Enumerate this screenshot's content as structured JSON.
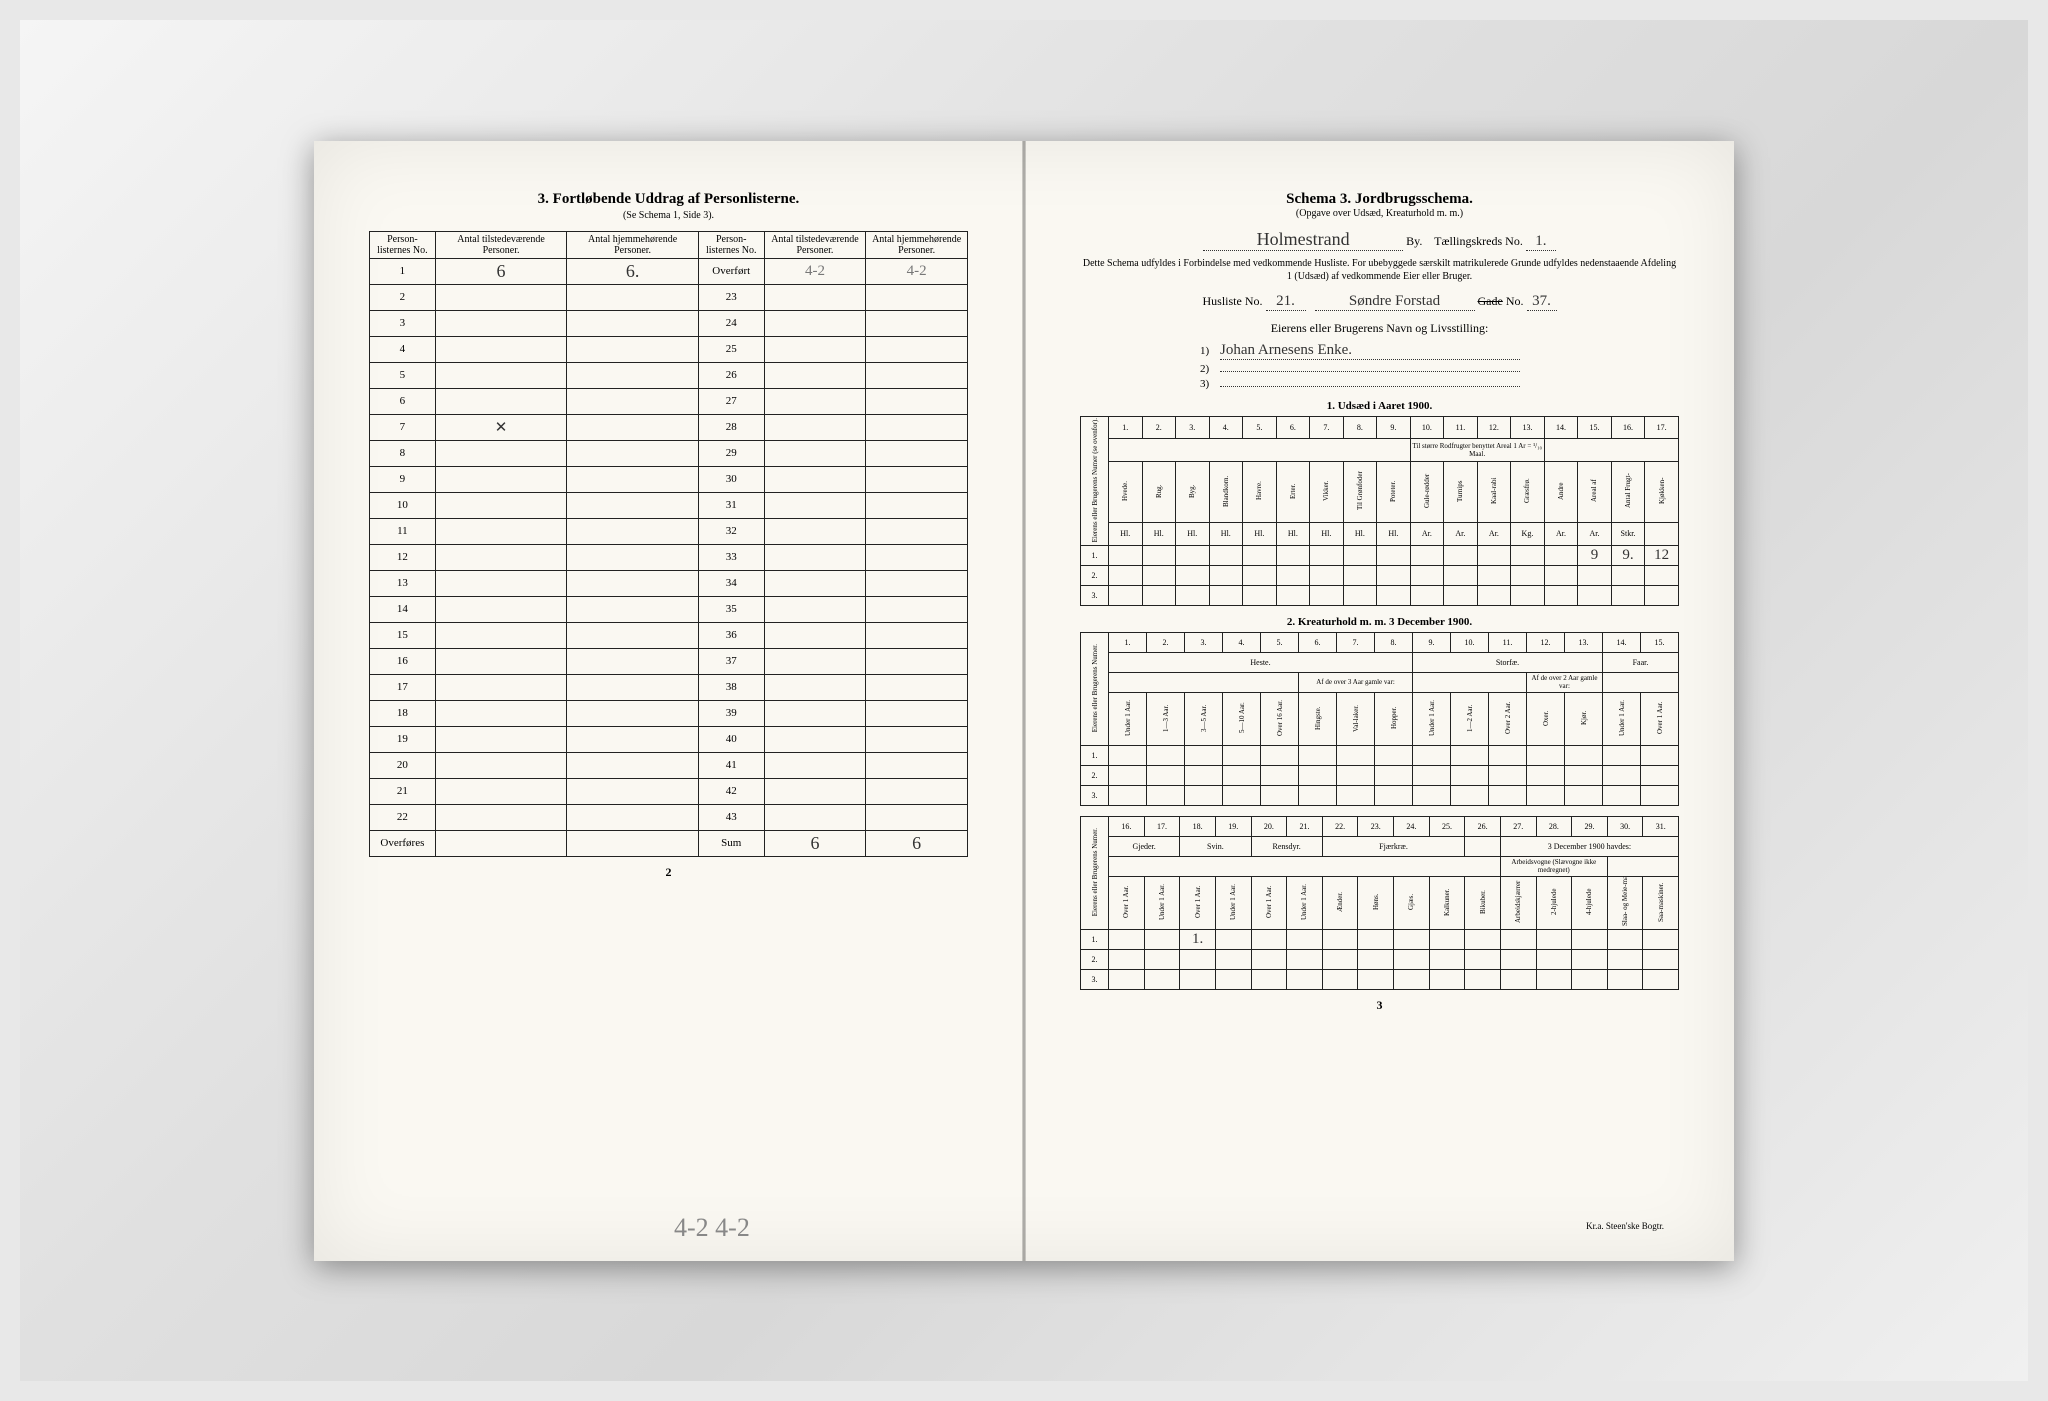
{
  "left": {
    "title": "3.  Fortløbende Uddrag af Personlisterne.",
    "subtitle": "(Se Schema 1, Side 3).",
    "headers": {
      "col1": "Person-\nlisternes\nNo.",
      "col2": "Antal\ntilstedeværende\nPersoner.",
      "col3": "Antal\nhjemmehørende\nPersoner.",
      "col4": "Person-\nlisternes\nNo.",
      "col5": "Antal\ntilstedeværende\nPersoner.",
      "col6": "Antal\nhjemmehørende\nPersoner."
    },
    "overfort_label": "Overført",
    "overfort_hw_c5": "4-2",
    "overfort_hw_c6": "4-2",
    "row1_c2": "6",
    "row1_c3": "6.",
    "row7_mark": "✕",
    "overfores_label": "Overføres",
    "sum_label": "Sum",
    "sum_c5": "6",
    "sum_c6": "6",
    "page_num": "2",
    "pencil_note": "4-2 4-2"
  },
  "right": {
    "title": "Schema 3.  Jordbrugsschema.",
    "subtitle": "(Opgave over Udsæd, Kreaturhold m. m.)",
    "city_hw": "Holmestrand",
    "by_label": "By.",
    "kreds_label": "Tællingskreds No.",
    "kreds_hw": "1.",
    "desc": "Dette Schema udfyldes i Forbindelse med vedkommende Husliste. For ubebyggede særskilt matrikulerede Grunde udfyldes nedenstaaende Afdeling 1 (Udsæd) af vedkommende Eier eller Bruger.",
    "husliste_label": "Husliste No.",
    "husliste_hw": "21.",
    "gade_hw": "Søndre Forstad",
    "gade_label": "Gade",
    "gade_no_label": "No.",
    "gade_no_hw": "37.",
    "owner_heading": "Eierens eller Brugerens Navn og Livsstilling:",
    "owner_1": "Johan Arnesens Enke.",
    "owner_2": "",
    "owner_3": "",
    "sec1_title": "1.  Udsæd i Aaret 1900.",
    "sec1": {
      "cols_num": [
        "1.",
        "2.",
        "3.",
        "4.",
        "5.",
        "6.",
        "7.",
        "8.",
        "9.",
        "10.",
        "11.",
        "12.",
        "13.",
        "14.",
        "15.",
        "16.",
        "17."
      ],
      "side": "Eierens eller\nBrugerens Numer\n(se ovenfor).",
      "labels": [
        "Hvede.",
        "Rug.",
        "Byg.",
        "Blandkorn.",
        "Havre.",
        "Erter.",
        "Vikker.",
        "Til Grønfoder",
        "Poteter.",
        "Gule-rødder",
        "Turnips",
        "Kaal-rabi",
        "Græsfrø.",
        "Andre",
        "Areal af",
        "Antal Frugt-",
        "Kjøkken-"
      ],
      "units": [
        "Hl.",
        "Hl.",
        "Hl.",
        "Hl.",
        "Hl.",
        "Hl.",
        "Hl.",
        "Hl.",
        "Hl.",
        "Ar.",
        "Ar.",
        "Ar.",
        "Kg.",
        "Ar.",
        "Ar.",
        "Stkr."
      ],
      "note": "Til større Rodfrugter benyttet Areal 1 Ar = ¹/₁₀ Maal.",
      "row1_vals": [
        "",
        "",
        "",
        "",
        "",
        "",
        "",
        "",
        "",
        "",
        "",
        "",
        "",
        "",
        "9",
        "9.",
        "12"
      ]
    },
    "sec2_title": "2.  Kreaturhold m. m. 3 December 1900.",
    "sec2a": {
      "cols_num": [
        "1.",
        "2.",
        "3.",
        "4.",
        "5.",
        "6.",
        "7.",
        "8.",
        "9.",
        "10.",
        "11.",
        "12.",
        "13.",
        "14.",
        "15."
      ],
      "side": "Eierens eller\nBrugerens Numer.",
      "group_heste": "Heste.",
      "group_storf": "Storfæ.",
      "group_faar": "Faar.",
      "sub_af": "Af de over 3 Aar gamle var:",
      "sub_af2": "Af de over 2 Aar gamle var:",
      "labels": [
        "Under 1 Aar.",
        "1—3 Aar.",
        "3—5 Aar.",
        "5—10 Aar.",
        "Over 16 Aar.",
        "Hingste.",
        "Val-laker.",
        "Hopper.",
        "Under 1 Aar.",
        "1—2 Aar.",
        "Over 2 Aar.",
        "Oxer.",
        "Kjør.",
        "Under 1 Aar.",
        "Over 1 Aar."
      ]
    },
    "sec2b": {
      "cols_num": [
        "16.",
        "17.",
        "18.",
        "19.",
        "20.",
        "21.",
        "22.",
        "23.",
        "24.",
        "25.",
        "26.",
        "27.",
        "28.",
        "29.",
        "30.",
        "31."
      ],
      "side": "Eierens eller\nBrugerens Numer.",
      "group_gjeder": "Gjeder.",
      "group_svin": "Svin.",
      "group_rensdyr": "Rensdyr.",
      "group_fjaer": "Fjærkræ.",
      "group_havdes": "3 December 1900 havdes:",
      "labels": [
        "Over 1 Aar.",
        "Under 1 Aar.",
        "Over 1 Aar.",
        "Under 1 Aar.",
        "Over 1 Aar.",
        "Under 1 Aar.",
        "Ænder.",
        "Høns.",
        "Gjæs.",
        "Kalkuner.",
        "Bikuber.",
        "Arbeidskjærrer",
        "2-hjulede",
        "4-hjulede",
        "Slaa- og Meie-maskiner.",
        "Saa-maskiner."
      ],
      "sub_arbeid": "Arbeidsvogne (Slævogne ikke medregnet)",
      "row1_vals": [
        "",
        "",
        "1.",
        "",
        "",
        "",
        "",
        "",
        "",
        "",
        "",
        "",
        "",
        "",
        "",
        ""
      ]
    },
    "page_num": "3",
    "printer": "Kr.a. Steen'ske Bogtr."
  },
  "colors": {
    "paper": "#faf8f2",
    "ink": "#222222",
    "pencil": "#888888",
    "bg": "#e8e8e8"
  }
}
